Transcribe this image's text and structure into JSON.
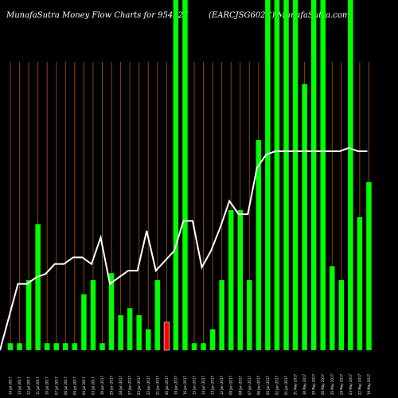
{
  "header": {
    "title_left": "MunafaSutra  Money Flow  Charts for 954527",
    "title_right": "(EARCJSG602C) MunafaSutra.com"
  },
  "chart_data": {
    "type": "bar",
    "title": "MunafaSutra  Money Flow  Charts for 954527",
    "subtitle": "(EARCJSG602C) MunafaSutra.com",
    "x": [
      "Fri 14 Jul 2017",
      "Thu 13 Jul 2017",
      "Wed 12 Jul 2017",
      "Tue 11 Jul 2017",
      "Mon 10 Jul 2017",
      "Fri 07 Jul 2017",
      "Thu 06 Jul 2017",
      "Wed 05 Jul 2017",
      "Tue 04 Jul 2017",
      "Mon 03 Jul 2017",
      "Fri 30 Jun 2017",
      "Thu 29 Jun 2017",
      "Wed 28 Jun 2017",
      "Tue 27 Jun 2017",
      "Fri 23 Jun 2017",
      "Thu 22 Jun 2017",
      "Wed 21 Jun 2017",
      "Tue 20 Jun 2017",
      "Mon 19 Jun 2017",
      "Fri 16 Jun 2017",
      "Thu 15 Jun 2017",
      "Wed 14 Jun 2017",
      "Tue 13 Jun 2017",
      "Mon 12 Jun 2017",
      "Fri 09 Jun 2017",
      "Thu 08 Jun 2017",
      "Wed 07 Jun 2017",
      "Tue 06 Jun 2017",
      "Mon 05 Jun 2017",
      "Fri 02 Jun 2017",
      "Thu 01 Jun 2017",
      "Wed 31 May 2017",
      "Tue 30 May 2017",
      "Mon 29 May 2017",
      "Fri 26 May 2017",
      "Thu 25 May 2017",
      "Wed 24 May 2017",
      "Tue 23 May 2017",
      "Mon 22 May 2017",
      "Fri 19 May 2017"
    ],
    "x_tick_labels": [
      "14 Jul 2017",
      "13 Jul 2017",
      "12 Jul 2017",
      "11 Jul 2017",
      "10 Jul 2017",
      "07 Jul 2017",
      "06 Jul 2017",
      "05 Jul 2017",
      "04 Jul 2017",
      "03 Jul 2017",
      "30 Jun 2017",
      "29 Jun 2017",
      "28 Jun 2017",
      "27 Jun 2017",
      "23 Jun 2017",
      "22 Jun 2017",
      "21 Jun 2017",
      "20 Jun 2017",
      "19 Jun 2017",
      "16 Jun 2017",
      "15 Jun 2017",
      "14 Jun 2017",
      "13 Jun 2017",
      "12 Jun 2017",
      "09 Jun 2017",
      "08 Jun 2017",
      "07 Jun 2017",
      "06 Jun 2017",
      "05 Jun 2017",
      "02 Jun 2017",
      "01 Jun 2017",
      "31 May 2017",
      "30 May 2017",
      "29 May 2017",
      "26 May 2017",
      "25 May 2017",
      "24 May 2017",
      "23 May 2017",
      "22 May 2017",
      "19 May 2017"
    ],
    "bars": [
      {
        "value": 2,
        "color": "green"
      },
      {
        "value": 2,
        "color": "green"
      },
      {
        "value": 20,
        "color": "green"
      },
      {
        "value": 36,
        "color": "green"
      },
      {
        "value": 2,
        "color": "green"
      },
      {
        "value": 2,
        "color": "green"
      },
      {
        "value": 2,
        "color": "green"
      },
      {
        "value": 2,
        "color": "green"
      },
      {
        "value": 16,
        "color": "green"
      },
      {
        "value": 20,
        "color": "green"
      },
      {
        "value": 2,
        "color": "green"
      },
      {
        "value": 22,
        "color": "green"
      },
      {
        "value": 10,
        "color": "green"
      },
      {
        "value": 12,
        "color": "green"
      },
      {
        "value": 10,
        "color": "green"
      },
      {
        "value": 6,
        "color": "green"
      },
      {
        "value": 20,
        "color": "green"
      },
      {
        "value": 8,
        "color": "red"
      },
      {
        "value": 100,
        "color": "green"
      },
      {
        "value": 100,
        "color": "green"
      },
      {
        "value": 2,
        "color": "green"
      },
      {
        "value": 2,
        "color": "green"
      },
      {
        "value": 6,
        "color": "green"
      },
      {
        "value": 20,
        "color": "green"
      },
      {
        "value": 40,
        "color": "green"
      },
      {
        "value": 40,
        "color": "green"
      },
      {
        "value": 20,
        "color": "green"
      },
      {
        "value": 60,
        "color": "green"
      },
      {
        "value": 100,
        "color": "green"
      },
      {
        "value": 100,
        "color": "green"
      },
      {
        "value": 100,
        "color": "green"
      },
      {
        "value": 100,
        "color": "green"
      },
      {
        "value": 76,
        "color": "green"
      },
      {
        "value": 100,
        "color": "green"
      },
      {
        "value": 100,
        "color": "green"
      },
      {
        "value": 24,
        "color": "green"
      },
      {
        "value": 20,
        "color": "green"
      },
      {
        "value": 100,
        "color": "green"
      },
      {
        "value": 38,
        "color": "green"
      },
      {
        "value": 48,
        "color": "green"
      }
    ],
    "line": [
      0,
      20,
      20,
      22,
      23,
      26,
      26,
      28,
      28,
      26,
      34,
      20,
      22,
      24,
      24,
      36,
      24,
      27,
      30,
      39,
      39,
      25,
      30,
      37,
      45,
      41,
      41,
      55,
      59,
      60,
      60,
      60,
      60,
      60,
      60,
      60,
      60,
      61,
      60,
      60
    ],
    "ylim": [
      0,
      100
    ],
    "grid": true,
    "colors": {
      "background": "#000000",
      "grid": "#8b4513",
      "bar_up": "#00ff00",
      "bar_down": "#ff0000",
      "line": "#ffffff",
      "text": "#ffffff"
    }
  }
}
